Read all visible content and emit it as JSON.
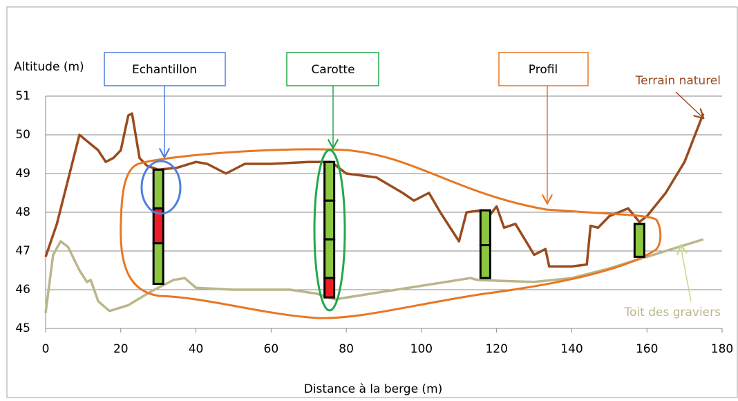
{
  "chart_data": {
    "type": "line",
    "ylabel": "Altitude (m)",
    "xlabel": "Distance à la berge (m)",
    "xlim": [
      0,
      180
    ],
    "xticks": [
      0,
      20,
      40,
      60,
      80,
      100,
      120,
      140,
      160,
      180
    ],
    "ylim": [
      45,
      51
    ],
    "yticks": [
      45,
      46,
      47,
      48,
      49,
      50,
      51
    ],
    "grid": true,
    "series": [
      {
        "name": "Terrain naturel",
        "color": "#9a4b1e",
        "x": [
          0,
          3,
          9,
          14,
          16,
          18,
          20,
          22,
          23,
          25,
          27,
          30,
          35,
          40,
          43,
          48,
          53,
          60,
          70,
          76,
          80,
          88,
          95,
          98,
          102,
          105,
          110,
          112,
          116,
          118,
          120,
          122,
          125,
          130,
          133,
          134,
          140,
          144,
          145,
          147,
          150,
          155,
          158,
          160,
          165,
          170,
          175
        ],
        "values": [
          46.85,
          47.7,
          50.0,
          49.6,
          49.3,
          49.4,
          49.6,
          50.5,
          50.55,
          49.4,
          49.2,
          49.1,
          49.15,
          49.3,
          49.25,
          49.0,
          49.25,
          49.25,
          49.3,
          49.3,
          49.0,
          48.9,
          48.5,
          48.3,
          48.5,
          48.0,
          47.25,
          48.0,
          48.05,
          47.9,
          48.15,
          47.6,
          47.7,
          46.9,
          47.05,
          46.6,
          46.6,
          46.65,
          47.65,
          47.6,
          47.9,
          48.1,
          47.75,
          47.9,
          48.5,
          49.3,
          50.55
        ]
      },
      {
        "name": "Toit des graviers",
        "color": "#bab68a",
        "x": [
          0,
          2,
          4,
          6,
          9,
          11,
          12,
          14,
          17,
          22,
          28,
          34,
          37,
          40,
          50,
          65,
          72,
          77,
          90,
          100,
          113,
          115,
          130,
          140,
          150,
          160,
          175
        ],
        "values": [
          45.4,
          46.9,
          47.25,
          47.1,
          46.5,
          46.2,
          46.25,
          45.7,
          45.45,
          45.6,
          45.95,
          46.25,
          46.3,
          46.05,
          46.0,
          46.0,
          45.9,
          45.75,
          45.95,
          46.1,
          46.3,
          46.25,
          46.2,
          46.3,
          46.55,
          46.85,
          47.3
        ]
      }
    ],
    "cores": [
      {
        "x": 30,
        "segments": [
          {
            "top": 49.1,
            "bottom": 48.1,
            "color": "#8dc63f"
          },
          {
            "top": 48.1,
            "bottom": 47.2,
            "color": "#ee1c24"
          },
          {
            "top": 47.2,
            "bottom": 46.15,
            "color": "#8dc63f"
          }
        ]
      },
      {
        "x": 75.5,
        "segments": [
          {
            "top": 49.3,
            "bottom": 48.3,
            "color": "#8dc63f"
          },
          {
            "top": 48.3,
            "bottom": 47.3,
            "color": "#8dc63f"
          },
          {
            "top": 47.3,
            "bottom": 46.3,
            "color": "#8dc63f"
          },
          {
            "top": 46.3,
            "bottom": 45.8,
            "color": "#ee1c24"
          }
        ]
      },
      {
        "x": 117,
        "segments": [
          {
            "top": 48.05,
            "bottom": 47.15,
            "color": "#8dc63f"
          },
          {
            "top": 47.15,
            "bottom": 46.3,
            "color": "#8dc63f"
          }
        ]
      },
      {
        "x": 158,
        "segments": [
          {
            "top": 47.7,
            "bottom": 46.85,
            "color": "#8dc63f"
          }
        ]
      }
    ],
    "annotations": [
      "Echantillon",
      "Carotte",
      "Profil"
    ]
  }
}
